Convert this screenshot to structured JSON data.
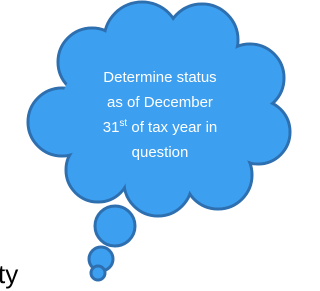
{
  "callout": {
    "lines": [
      "Determine status",
      "as of December"
    ],
    "date_number": "31",
    "date_suffix": "st",
    "date_rest": " of tax year in",
    "last_line": "question"
  },
  "fragment": "ty"
}
